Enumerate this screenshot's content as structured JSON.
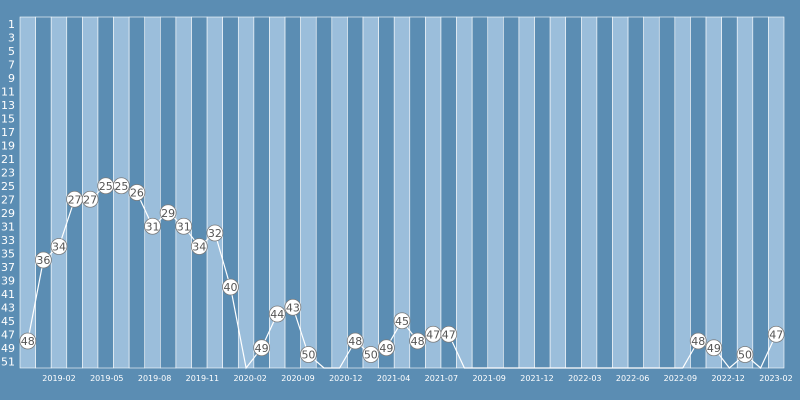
{
  "colors": {
    "background": "#5b8db3",
    "band_light": "#9bbedb",
    "band_dark": "#5b8db3",
    "band_stroke": "#ffffff",
    "line": "#ffffff",
    "marker_fill": "#ffffff",
    "marker_stroke": "#7a7a7a",
    "label_text": "#555555",
    "tick_text": "#ffffff"
  },
  "chart_data": {
    "type": "line",
    "title": "",
    "xlabel": "",
    "ylabel": "",
    "y_axis_inverted": true,
    "ylim": [
      52,
      0
    ],
    "yticks": [
      1,
      3,
      5,
      7,
      9,
      11,
      13,
      15,
      17,
      19,
      21,
      23,
      25,
      27,
      29,
      31,
      33,
      35,
      37,
      39,
      41,
      43,
      45,
      47,
      49,
      51
    ],
    "x_tick_labels": [
      "2019-02",
      "2019-05",
      "2019-08",
      "2019-11",
      "2020-02",
      "2020-09",
      "2020-12",
      "2021-04",
      "2021-07",
      "2021-09",
      "2021-12",
      "2022-03",
      "2022-06",
      "2022-09",
      "2022-12",
      "2023-02"
    ],
    "grid": false,
    "legend": "none",
    "series": [
      {
        "values": [
          48,
          36,
          34,
          27,
          27,
          25,
          25,
          26,
          31,
          29,
          31,
          34,
          32,
          40,
          52,
          49,
          44,
          43,
          50,
          52,
          52,
          48,
          50,
          49,
          45,
          48,
          47,
          47,
          52,
          52,
          52,
          52,
          52,
          52,
          52,
          52,
          52,
          52,
          52,
          52,
          52,
          52,
          52,
          48,
          49,
          52,
          50,
          52,
          47
        ],
        "labels": [
          "48",
          "36",
          "34",
          "27",
          "27",
          "25",
          "25",
          "26",
          "31",
          "29",
          "31",
          "34",
          "32",
          "40",
          "",
          "49",
          "44",
          "43",
          "50",
          "",
          "",
          "48",
          "50",
          "49",
          "45",
          "48",
          "47",
          "47",
          "",
          "",
          "",
          "",
          "",
          "",
          "",
          "",
          "",
          "",
          "",
          "",
          "",
          "",
          "",
          "48",
          "49",
          "",
          "50",
          "",
          "47"
        ]
      }
    ]
  }
}
